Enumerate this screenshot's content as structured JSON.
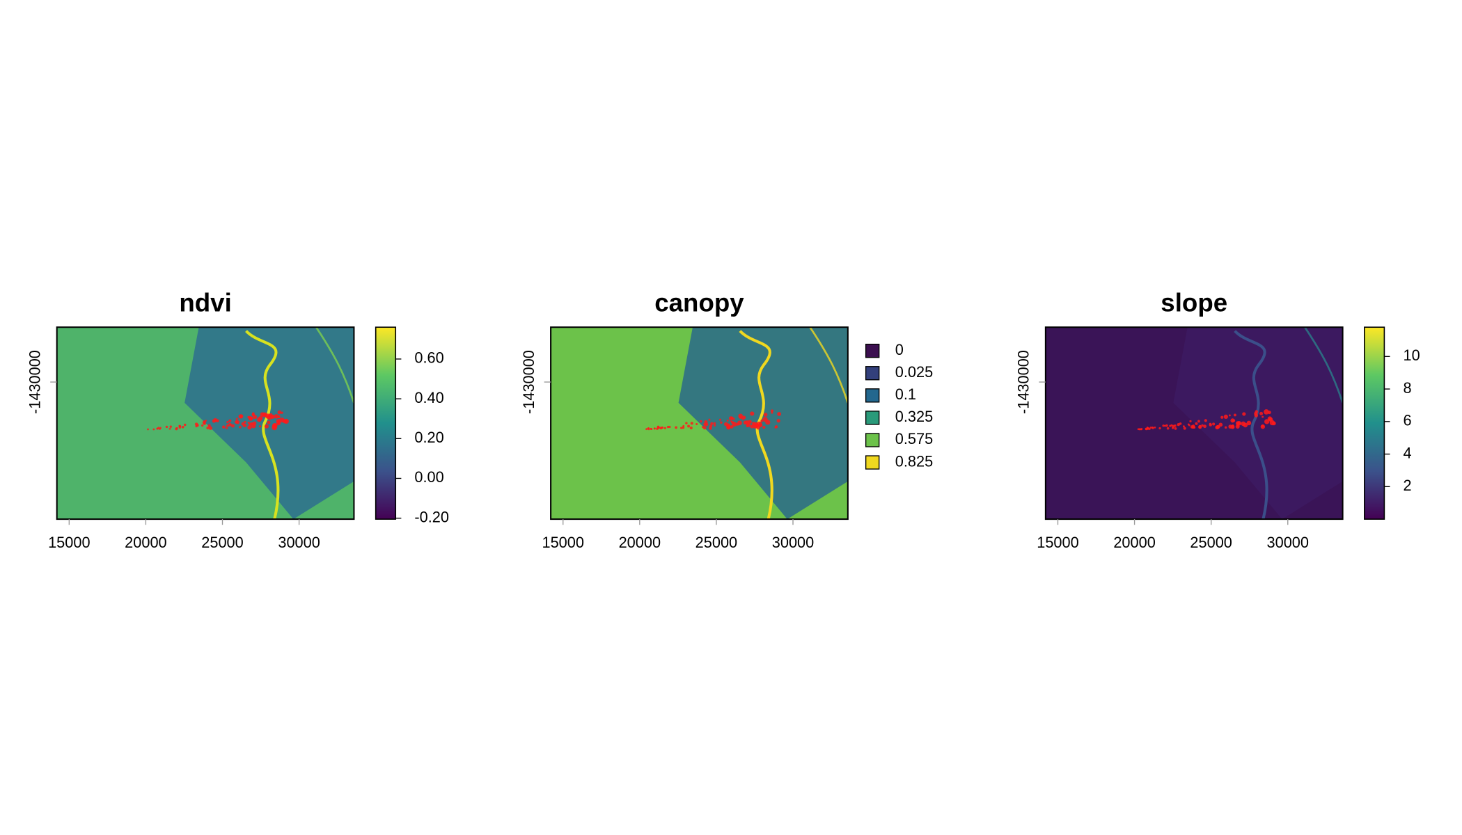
{
  "chart_data": [
    {
      "type": "raster",
      "title": "ndvi",
      "xlim": [
        14200,
        33580
      ],
      "ylim": [
        -1438950,
        -1426420
      ],
      "xticks": [
        15000,
        20000,
        25000,
        30000
      ],
      "yticks": [
        -1430000
      ],
      "legend": {
        "type": "continuous",
        "clim": [
          -0.205,
          0.76
        ],
        "ticks": [
          {
            "value": 0.6,
            "label": "0.60"
          },
          {
            "value": 0.4,
            "label": "0.40"
          },
          {
            "value": 0.2,
            "label": "0.20"
          },
          {
            "value": 0,
            "label": "0.00"
          },
          {
            "value": -0.2,
            "label": "-0.20"
          }
        ]
      }
    },
    {
      "type": "raster",
      "title": "canopy",
      "xlim": [
        14200,
        33580
      ],
      "ylim": [
        -1438950,
        -1426420
      ],
      "xticks": [
        15000,
        20000,
        25000,
        30000
      ],
      "yticks": [
        -1430000
      ],
      "legend": {
        "type": "classes",
        "classes": [
          {
            "label": "0",
            "color": "#3b0f4f"
          },
          {
            "label": "0.025",
            "color": "#33407c"
          },
          {
            "label": "0.1",
            "color": "#23678e"
          },
          {
            "label": "0.325",
            "color": "#2a9a7a"
          },
          {
            "label": "0.575",
            "color": "#6cc24a"
          },
          {
            "label": "0.825",
            "color": "#f0d81f"
          }
        ]
      }
    },
    {
      "type": "raster",
      "title": "slope",
      "xlim": [
        14200,
        33580
      ],
      "ylim": [
        -1438950,
        -1426420
      ],
      "xticks": [
        15000,
        20000,
        25000,
        30000
      ],
      "yticks": [
        -1430000
      ],
      "legend": {
        "type": "continuous",
        "clim": [
          0,
          11.8
        ],
        "ticks": [
          10,
          8,
          6,
          4,
          2
        ]
      }
    }
  ]
}
